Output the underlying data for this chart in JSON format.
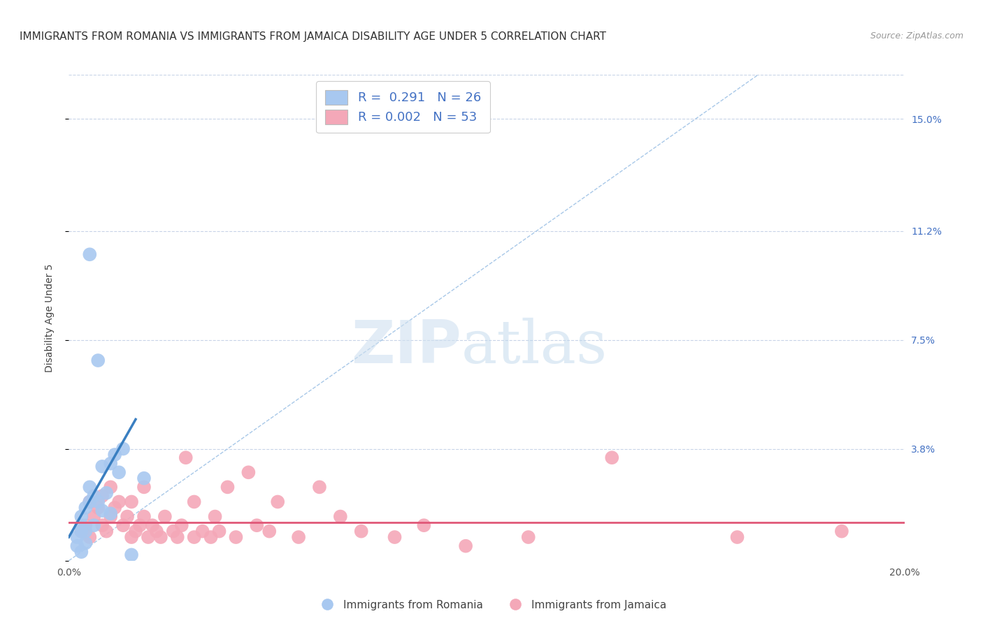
{
  "title": "IMMIGRANTS FROM ROMANIA VS IMMIGRANTS FROM JAMAICA DISABILITY AGE UNDER 5 CORRELATION CHART",
  "source": "Source: ZipAtlas.com",
  "ylabel": "Disability Age Under 5",
  "ytick_labels": [
    "",
    "3.8%",
    "7.5%",
    "11.2%",
    "15.0%"
  ],
  "ytick_values": [
    0,
    0.038,
    0.075,
    0.112,
    0.15
  ],
  "xlim": [
    0,
    0.2
  ],
  "ylim": [
    0,
    0.165
  ],
  "romania_color": "#a8c8f0",
  "jamaica_color": "#f4a8b8",
  "romania_line_color": "#3a7fc1",
  "jamaica_line_color": "#e05878",
  "diagonal_color": "#a8c8e8",
  "watermark_zip": "ZIP",
  "watermark_atlas": "atlas",
  "romania_scatter_x": [
    0.002,
    0.002,
    0.003,
    0.003,
    0.003,
    0.003,
    0.004,
    0.004,
    0.004,
    0.005,
    0.005,
    0.005,
    0.006,
    0.006,
    0.007,
    0.007,
    0.008,
    0.008,
    0.009,
    0.01,
    0.01,
    0.011,
    0.012,
    0.013,
    0.015,
    0.018
  ],
  "romania_scatter_y": [
    0.005,
    0.008,
    0.01,
    0.012,
    0.015,
    0.003,
    0.01,
    0.018,
    0.006,
    0.02,
    0.025,
    0.104,
    0.022,
    0.012,
    0.02,
    0.068,
    0.017,
    0.032,
    0.023,
    0.016,
    0.033,
    0.036,
    0.03,
    0.038,
    0.002,
    0.028
  ],
  "jamaica_scatter_x": [
    0.003,
    0.004,
    0.005,
    0.005,
    0.006,
    0.007,
    0.008,
    0.008,
    0.009,
    0.01,
    0.01,
    0.011,
    0.012,
    0.013,
    0.014,
    0.015,
    0.015,
    0.016,
    0.017,
    0.018,
    0.018,
    0.019,
    0.02,
    0.021,
    0.022,
    0.023,
    0.025,
    0.026,
    0.027,
    0.028,
    0.03,
    0.03,
    0.032,
    0.034,
    0.035,
    0.036,
    0.038,
    0.04,
    0.043,
    0.045,
    0.048,
    0.05,
    0.055,
    0.06,
    0.065,
    0.07,
    0.078,
    0.085,
    0.095,
    0.11,
    0.13,
    0.16,
    0.185
  ],
  "jamaica_scatter_y": [
    0.01,
    0.012,
    0.008,
    0.02,
    0.015,
    0.018,
    0.012,
    0.022,
    0.01,
    0.015,
    0.025,
    0.018,
    0.02,
    0.012,
    0.015,
    0.008,
    0.02,
    0.01,
    0.012,
    0.015,
    0.025,
    0.008,
    0.012,
    0.01,
    0.008,
    0.015,
    0.01,
    0.008,
    0.012,
    0.035,
    0.008,
    0.02,
    0.01,
    0.008,
    0.015,
    0.01,
    0.025,
    0.008,
    0.03,
    0.012,
    0.01,
    0.02,
    0.008,
    0.025,
    0.015,
    0.01,
    0.008,
    0.012,
    0.005,
    0.008,
    0.035,
    0.008,
    0.01
  ],
  "romania_trend_x": [
    0.0,
    0.016
  ],
  "romania_trend_y": [
    0.008,
    0.048
  ],
  "jamaica_trend_x": [
    0.0,
    0.2
  ],
  "jamaica_trend_y": [
    0.013,
    0.013
  ],
  "background_color": "#ffffff",
  "grid_color": "#c8d4e8",
  "title_fontsize": 11,
  "axis_label_fontsize": 10,
  "tick_fontsize": 10,
  "legend_fontsize": 13
}
